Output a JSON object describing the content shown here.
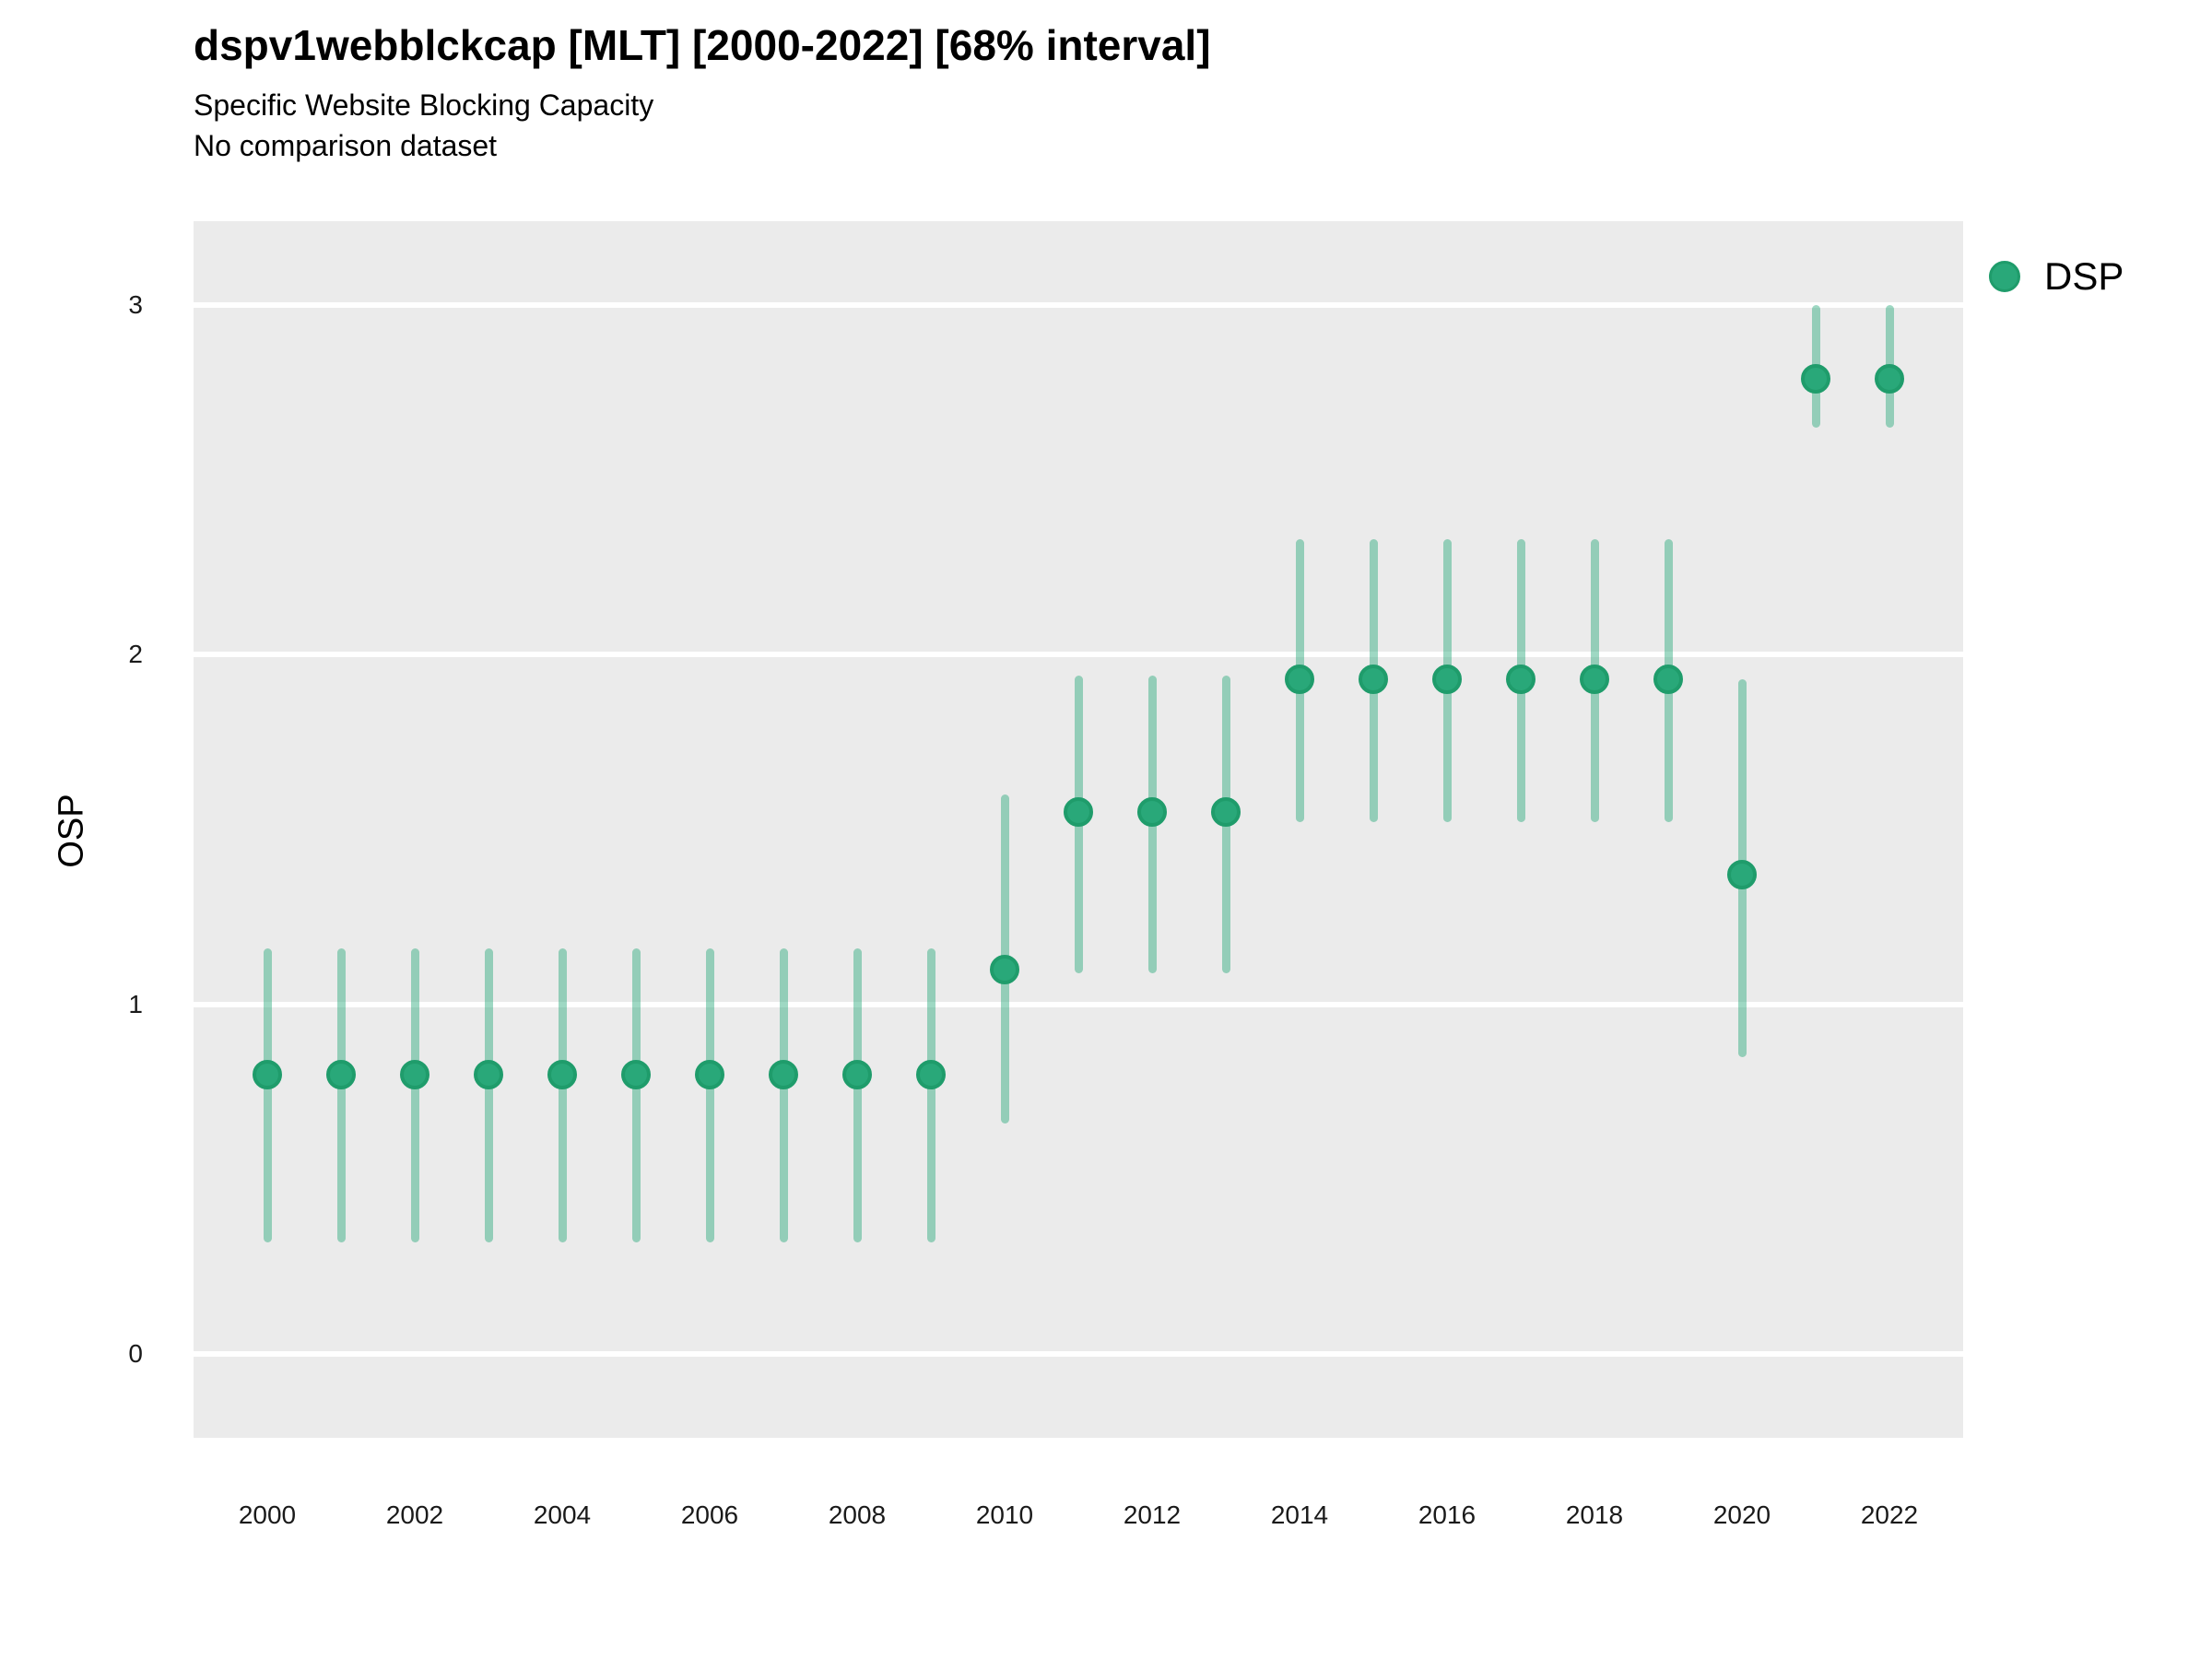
{
  "header": {
    "title": "dspv1webblckcap [MLT] [2000-2022] [68% interval]",
    "subtitle": "Specific Website Blocking Capacity",
    "comparison_note": "No comparison dataset"
  },
  "legend": {
    "items": [
      {
        "label": "DSP",
        "color": "#29a879"
      }
    ]
  },
  "colors": {
    "point_fill": "#29a879",
    "point_stroke": "#1f9c6b",
    "interval_bar": "rgba(41,168,121,0.45)",
    "panel_background": "#ebebeb",
    "gridline": "#ffffff",
    "text": "#000000"
  },
  "chart_data": {
    "type": "scatter",
    "title": "dspv1webblckcap [MLT] [2000-2022] [68% interval]",
    "subtitle": "Specific Website Blocking Capacity",
    "note": "No comparison dataset",
    "interval": "68%",
    "xlabel": "",
    "ylabel": "OSP",
    "grid": "horizontal-major",
    "legend_position": "right",
    "xlim": [
      1999,
      2023
    ],
    "ylim": [
      -0.24,
      3.24
    ],
    "xticks": [
      2000,
      2002,
      2004,
      2006,
      2008,
      2010,
      2012,
      2014,
      2016,
      2018,
      2020,
      2022
    ],
    "yticks": [
      0,
      1,
      2,
      3
    ],
    "x": [
      2000,
      2001,
      2002,
      2003,
      2004,
      2005,
      2006,
      2007,
      2008,
      2009,
      2010,
      2011,
      2012,
      2013,
      2014,
      2015,
      2016,
      2017,
      2018,
      2019,
      2020,
      2021,
      2022
    ],
    "series": [
      {
        "name": "DSP",
        "estimates": [
          0.8,
          0.8,
          0.8,
          0.8,
          0.8,
          0.8,
          0.8,
          0.8,
          0.8,
          0.8,
          1.1,
          1.55,
          1.55,
          1.55,
          1.93,
          1.93,
          1.93,
          1.93,
          1.93,
          1.93,
          1.37,
          2.79,
          2.79
        ],
        "lower_68": [
          0.32,
          0.32,
          0.32,
          0.32,
          0.32,
          0.32,
          0.32,
          0.32,
          0.32,
          0.32,
          0.66,
          1.09,
          1.09,
          1.09,
          1.52,
          1.52,
          1.52,
          1.52,
          1.52,
          1.52,
          0.85,
          2.65,
          2.65
        ],
        "upper_68": [
          1.16,
          1.16,
          1.16,
          1.16,
          1.16,
          1.16,
          1.16,
          1.16,
          1.16,
          1.16,
          1.6,
          1.94,
          1.94,
          1.94,
          2.33,
          2.33,
          2.33,
          2.33,
          2.33,
          2.33,
          1.93,
          3.0,
          3.0
        ]
      }
    ]
  }
}
